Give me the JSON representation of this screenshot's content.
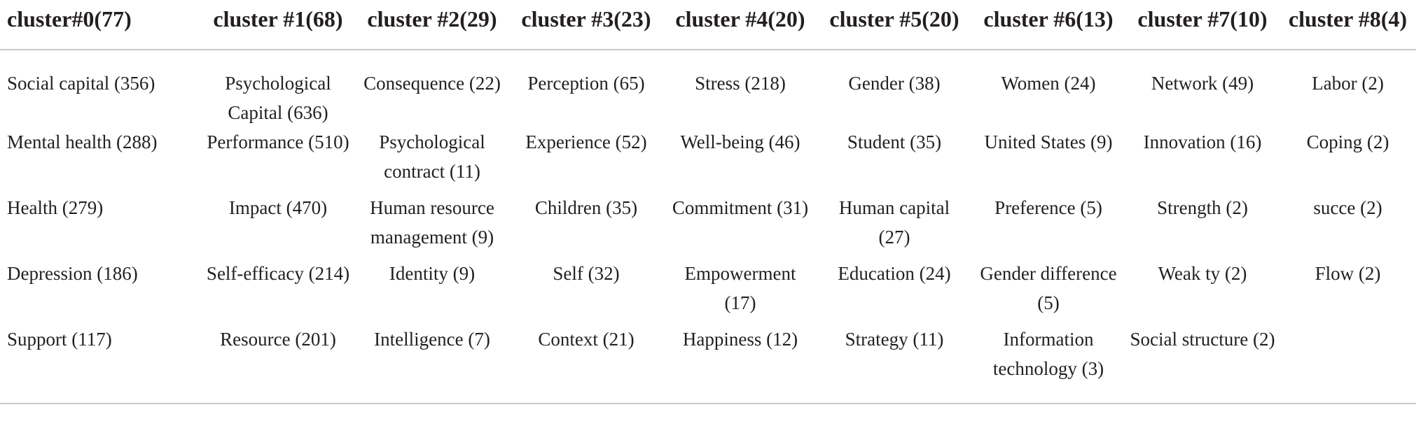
{
  "table": {
    "headers": [
      "cluster#0(77)",
      "cluster #1(68)",
      "cluster #2(29)",
      "cluster #3(23)",
      "cluster #4(20)",
      "cluster #5(20)",
      "cluster #6(13)",
      "cluster #7(10)",
      "cluster #8(4)"
    ],
    "rows": [
      [
        "Social capital (356)",
        "Psychological Capital (636)",
        "Consequence (22)",
        "Perception (65)",
        "Stress (218)",
        "Gender (38)",
        "Women (24)",
        "Network (49)",
        "Labor (2)"
      ],
      [
        "Mental health (288)",
        "Performance (510)",
        "Psychological contract (11)",
        "Experience (52)",
        "Well-being (46)",
        "Student (35)",
        "United States (9)",
        "Innovation (16)",
        "Coping (2)"
      ],
      [
        "Health (279)",
        "Impact (470)",
        "Human resource management (9)",
        "Children (35)",
        "Commitment (31)",
        "Human capital (27)",
        "Preference (5)",
        "Strength (2)",
        "succe (2)"
      ],
      [
        "Depression (186)",
        "Self-efficacy (214)",
        "Identity (9)",
        "Self (32)",
        "Empowerment (17)",
        "Education (24)",
        "Gender difference (5)",
        "Weak ty (2)",
        "Flow (2)"
      ],
      [
        "Support (117)",
        "Resource (201)",
        "Intelligence (7)",
        "Context (21)",
        "Happiness (12)",
        "Strategy (11)",
        "Information technology (3)",
        "Social structure (2)",
        ""
      ]
    ]
  }
}
